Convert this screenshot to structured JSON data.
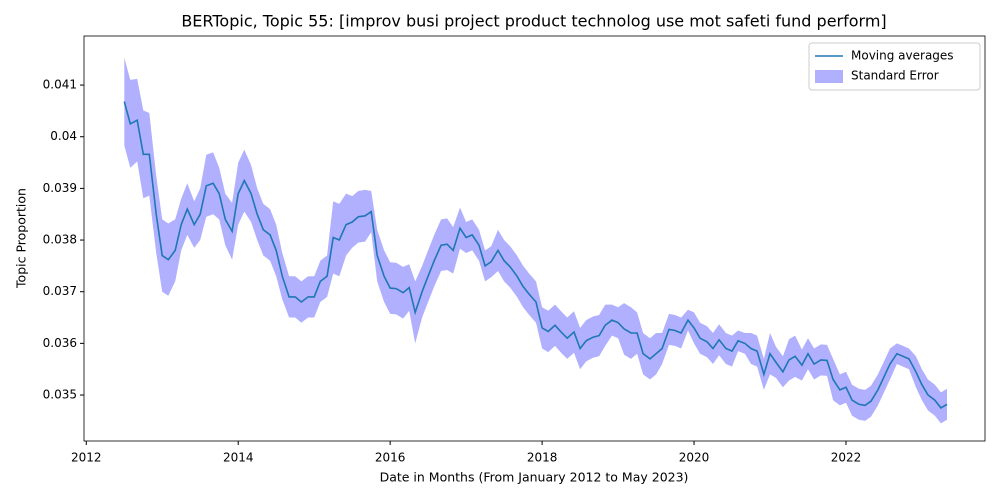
{
  "chart_data": {
    "type": "line",
    "title": "BERTopic, Topic 55: [improv busi project product technolog use mot safeti fund perform]",
    "xlabel": "Date in Months (From January 2012 to May 2023)",
    "ylabel": "Topic Proportion",
    "x": [
      2012.5,
      2012.58,
      2012.67,
      2012.75,
      2012.83,
      2012.92,
      2013.0,
      2013.08,
      2013.17,
      2013.25,
      2013.33,
      2013.42,
      2013.5,
      2013.58,
      2013.67,
      2013.75,
      2013.83,
      2013.92,
      2014.0,
      2014.08,
      2014.17,
      2014.25,
      2014.33,
      2014.42,
      2014.5,
      2014.58,
      2014.67,
      2014.75,
      2014.83,
      2014.92,
      2015.0,
      2015.08,
      2015.17,
      2015.25,
      2015.33,
      2015.42,
      2015.5,
      2015.58,
      2015.67,
      2015.75,
      2015.83,
      2015.92,
      2016.0,
      2016.08,
      2016.17,
      2016.25,
      2016.33,
      2016.42,
      2016.5,
      2016.58,
      2016.67,
      2016.75,
      2016.83,
      2016.92,
      2017.0,
      2017.08,
      2017.17,
      2017.25,
      2017.33,
      2017.42,
      2017.5,
      2017.58,
      2017.67,
      2017.75,
      2017.83,
      2017.92,
      2018.0,
      2018.08,
      2018.17,
      2018.25,
      2018.33,
      2018.42,
      2018.5,
      2018.58,
      2018.67,
      2018.75,
      2018.83,
      2018.92,
      2019.0,
      2019.08,
      2019.17,
      2019.25,
      2019.33,
      2019.42,
      2019.5,
      2019.58,
      2019.67,
      2019.75,
      2019.83,
      2019.92,
      2020.0,
      2020.08,
      2020.17,
      2020.25,
      2020.33,
      2020.42,
      2020.5,
      2020.58,
      2020.67,
      2020.75,
      2020.83,
      2020.92,
      2021.0,
      2021.08,
      2021.17,
      2021.25,
      2021.33,
      2021.42,
      2021.5,
      2021.58,
      2021.67,
      2021.75,
      2021.83,
      2021.92,
      2022.0,
      2022.08,
      2022.17,
      2022.25,
      2022.33,
      2022.42,
      2022.5,
      2022.58,
      2022.67,
      2022.75,
      2022.83,
      2022.92,
      2023.0,
      2023.08,
      2023.17,
      2023.25,
      2023.33
    ],
    "series": [
      {
        "name": "Moving averages",
        "color": "#1f77b4",
        "values": [
          0.04068,
          0.04025,
          0.04032,
          0.03966,
          0.03966,
          0.0385,
          0.0377,
          0.03762,
          0.0378,
          0.0383,
          0.0386,
          0.0383,
          0.0385,
          0.03905,
          0.0391,
          0.0389,
          0.0384,
          0.03817,
          0.0389,
          0.03915,
          0.0389,
          0.0385,
          0.0382,
          0.0381,
          0.0378,
          0.0373,
          0.0369,
          0.0369,
          0.0368,
          0.0369,
          0.0369,
          0.0372,
          0.0373,
          0.03805,
          0.038,
          0.0383,
          0.03835,
          0.03845,
          0.03847,
          0.03855,
          0.0377,
          0.0373,
          0.03707,
          0.03706,
          0.03698,
          0.03708,
          0.0366,
          0.037,
          0.0373,
          0.0376,
          0.0379,
          0.03792,
          0.0378,
          0.03823,
          0.03805,
          0.0381,
          0.0379,
          0.0375,
          0.03758,
          0.0378,
          0.0376,
          0.03748,
          0.0373,
          0.0371,
          0.03695,
          0.0368,
          0.0363,
          0.03623,
          0.03635,
          0.03622,
          0.0361,
          0.03622,
          0.0359,
          0.03605,
          0.03612,
          0.03615,
          0.03635,
          0.03645,
          0.0364,
          0.03628,
          0.0362,
          0.0362,
          0.0358,
          0.0357,
          0.0358,
          0.0359,
          0.03627,
          0.03625,
          0.0362,
          0.03645,
          0.0363,
          0.0361,
          0.03603,
          0.0359,
          0.03607,
          0.0359,
          0.03585,
          0.03605,
          0.036,
          0.0359,
          0.03585,
          0.0354,
          0.0358,
          0.03563,
          0.03545,
          0.03568,
          0.03575,
          0.03558,
          0.0358,
          0.0356,
          0.03568,
          0.03567,
          0.0353,
          0.0351,
          0.03515,
          0.0349,
          0.03482,
          0.0348,
          0.03488,
          0.0351,
          0.03535,
          0.0356,
          0.0358,
          0.03575,
          0.0357,
          0.03545,
          0.0352,
          0.035,
          0.0349,
          0.03475,
          0.03482
        ],
        "error_name": "Standard Error",
        "error_color": "#b0b0ff",
        "errors": [
          0.00085,
          0.00085,
          0.0008,
          0.00085,
          0.0008,
          0.00075,
          0.0007,
          0.0007,
          0.0006,
          0.0005,
          0.0005,
          0.00045,
          0.0005,
          0.0006,
          0.0006,
          0.0005,
          0.0005,
          0.00055,
          0.0006,
          0.0006,
          0.00055,
          0.0005,
          0.0005,
          0.0005,
          0.0005,
          0.00045,
          0.0004,
          0.0004,
          0.0004,
          0.0004,
          0.0004,
          0.0004,
          0.0004,
          0.0007,
          0.0007,
          0.0006,
          0.0005,
          0.0005,
          0.0005,
          0.0004,
          0.0005,
          0.0005,
          0.0005,
          0.0005,
          0.0005,
          0.00045,
          0.0006,
          0.0005,
          0.0005,
          0.0005,
          0.0005,
          0.0005,
          0.00045,
          0.0004,
          0.0003,
          0.0003,
          0.0003,
          0.0003,
          0.0003,
          0.0004,
          0.0004,
          0.0004,
          0.0004,
          0.0004,
          0.0004,
          0.0004,
          0.0004,
          0.0004,
          0.0004,
          0.0004,
          0.0004,
          0.0004,
          0.0004,
          0.0004,
          0.0004,
          0.0004,
          0.0004,
          0.0003,
          0.0003,
          0.0005,
          0.0005,
          0.0004,
          0.0004,
          0.0004,
          0.0004,
          0.0003,
          0.0003,
          0.0003,
          0.0003,
          0.0002,
          0.0003,
          0.0003,
          0.0003,
          0.0003,
          0.0003,
          0.0003,
          0.0003,
          0.0002,
          0.0002,
          0.0003,
          0.0003,
          0.0003,
          0.0004,
          0.0003,
          0.0003,
          0.0004,
          0.0004,
          0.0003,
          0.0003,
          0.0003,
          0.0003,
          0.0003,
          0.0004,
          0.0003,
          0.0003,
          0.0003,
          0.0003,
          0.0003,
          0.0003,
          0.0003,
          0.0003,
          0.0003,
          0.0002,
          0.0002,
          0.0002,
          0.0003,
          0.0003,
          0.0003,
          0.0003,
          0.0003,
          0.0003
        ]
      }
    ],
    "xlim": [
      2011.97,
      2023.83
    ],
    "ylim": [
      0.03411,
      0.04195
    ],
    "xticks": [
      2012,
      2014,
      2016,
      2018,
      2020,
      2022
    ],
    "yticks": [
      0.035,
      0.036,
      0.037,
      0.038,
      0.039,
      0.04,
      0.041
    ],
    "legend": "upper right"
  }
}
